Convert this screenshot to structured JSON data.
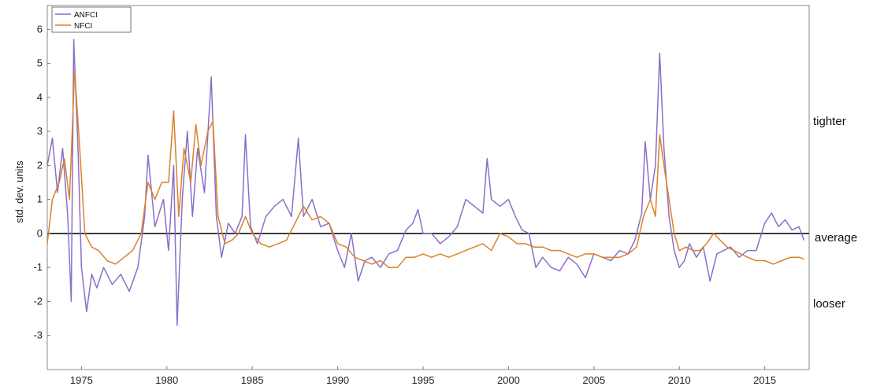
{
  "chart_data": {
    "type": "line",
    "title": "",
    "xlabel": "",
    "ylabel": "std. dev. units",
    "xlim": [
      1973,
      2017.6
    ],
    "ylim": [
      -4,
      6.7
    ],
    "x_ticks": [
      1975,
      1980,
      1985,
      1990,
      1995,
      2000,
      2005,
      2010,
      2015
    ],
    "y_ticks": [
      -3,
      -2,
      -1,
      0,
      1,
      2,
      3,
      4,
      5,
      6
    ],
    "grid": false,
    "legend": "top-left",
    "reference_line": 0,
    "side_labels": {
      "tighter": "tighter",
      "average": "average",
      "looser": "looser"
    },
    "series": [
      {
        "name": "ANFCI",
        "color": "#8a6fc8",
        "points": [
          [
            1973.0,
            2.0
          ],
          [
            1973.3,
            2.8
          ],
          [
            1973.6,
            1.2
          ],
          [
            1973.9,
            2.5
          ],
          [
            1974.2,
            0.5
          ],
          [
            1974.4,
            -2.0
          ],
          [
            1974.55,
            5.7
          ],
          [
            1974.8,
            2.5
          ],
          [
            1975.0,
            -1.0
          ],
          [
            1975.3,
            -2.3
          ],
          [
            1975.6,
            -1.2
          ],
          [
            1975.9,
            -1.6
          ],
          [
            1976.3,
            -1.0
          ],
          [
            1976.8,
            -1.5
          ],
          [
            1977.3,
            -1.2
          ],
          [
            1977.8,
            -1.7
          ],
          [
            1978.3,
            -1.0
          ],
          [
            1978.7,
            0.5
          ],
          [
            1978.9,
            2.3
          ],
          [
            1979.3,
            0.2
          ],
          [
            1979.8,
            1.0
          ],
          [
            1980.1,
            -0.5
          ],
          [
            1980.4,
            2.0
          ],
          [
            1980.6,
            -2.7
          ],
          [
            1980.9,
            1.0
          ],
          [
            1981.2,
            3.0
          ],
          [
            1981.5,
            0.5
          ],
          [
            1981.8,
            2.5
          ],
          [
            1982.2,
            1.2
          ],
          [
            1982.6,
            4.6
          ],
          [
            1982.9,
            0.5
          ],
          [
            1983.2,
            -0.7
          ],
          [
            1983.6,
            0.3
          ],
          [
            1984.0,
            0.0
          ],
          [
            1984.4,
            0.5
          ],
          [
            1984.6,
            2.9
          ],
          [
            1984.9,
            0.2
          ],
          [
            1985.3,
            -0.3
          ],
          [
            1985.8,
            0.5
          ],
          [
            1986.3,
            0.8
          ],
          [
            1986.8,
            1.0
          ],
          [
            1987.3,
            0.5
          ],
          [
            1987.7,
            2.8
          ],
          [
            1988.0,
            0.5
          ],
          [
            1988.5,
            1.0
          ],
          [
            1989.0,
            0.2
          ],
          [
            1989.5,
            0.3
          ],
          [
            1990.0,
            -0.5
          ],
          [
            1990.4,
            -1.0
          ],
          [
            1990.8,
            0.0
          ],
          [
            1991.2,
            -1.4
          ],
          [
            1991.6,
            -0.8
          ],
          [
            1992.0,
            -0.7
          ],
          [
            1992.5,
            -1.0
          ],
          [
            1993.0,
            -0.6
          ],
          [
            1993.5,
            -0.5
          ],
          [
            1994.0,
            0.1
          ],
          [
            1994.4,
            0.3
          ],
          [
            1994.7,
            0.7
          ],
          [
            1995.0,
            0.0
          ],
          [
            1995.5,
            0.0
          ],
          [
            1996.0,
            -0.3
          ],
          [
            1996.5,
            -0.1
          ],
          [
            1997.0,
            0.2
          ],
          [
            1997.5,
            1.0
          ],
          [
            1998.0,
            0.8
          ],
          [
            1998.5,
            0.6
          ],
          [
            1998.75,
            2.2
          ],
          [
            1999.0,
            1.0
          ],
          [
            1999.5,
            0.8
          ],
          [
            2000.0,
            1.0
          ],
          [
            2000.4,
            0.5
          ],
          [
            2000.8,
            0.1
          ],
          [
            2001.2,
            0.0
          ],
          [
            2001.6,
            -1.0
          ],
          [
            2002.0,
            -0.7
          ],
          [
            2002.5,
            -1.0
          ],
          [
            2003.0,
            -1.1
          ],
          [
            2003.5,
            -0.7
          ],
          [
            2004.0,
            -0.9
          ],
          [
            2004.5,
            -1.3
          ],
          [
            2005.0,
            -0.6
          ],
          [
            2005.5,
            -0.7
          ],
          [
            2006.0,
            -0.8
          ],
          [
            2006.5,
            -0.5
          ],
          [
            2007.0,
            -0.6
          ],
          [
            2007.4,
            -0.2
          ],
          [
            2007.8,
            0.6
          ],
          [
            2008.0,
            2.7
          ],
          [
            2008.3,
            1.0
          ],
          [
            2008.6,
            2.0
          ],
          [
            2008.85,
            5.3
          ],
          [
            2009.1,
            2.5
          ],
          [
            2009.4,
            0.5
          ],
          [
            2009.7,
            -0.5
          ],
          [
            2010.0,
            -1.0
          ],
          [
            2010.3,
            -0.8
          ],
          [
            2010.6,
            -0.3
          ],
          [
            2011.0,
            -0.7
          ],
          [
            2011.4,
            -0.4
          ],
          [
            2011.8,
            -1.4
          ],
          [
            2012.2,
            -0.6
          ],
          [
            2012.6,
            -0.5
          ],
          [
            2013.0,
            -0.4
          ],
          [
            2013.5,
            -0.7
          ],
          [
            2014.0,
            -0.5
          ],
          [
            2014.5,
            -0.5
          ],
          [
            2015.0,
            0.3
          ],
          [
            2015.4,
            0.6
          ],
          [
            2015.8,
            0.2
          ],
          [
            2016.2,
            0.4
          ],
          [
            2016.6,
            0.1
          ],
          [
            2017.0,
            0.2
          ],
          [
            2017.3,
            -0.2
          ]
        ]
      },
      {
        "name": "NFCI",
        "color": "#d9822b",
        "points": [
          [
            1973.0,
            -0.3
          ],
          [
            1973.3,
            1.0
          ],
          [
            1973.7,
            1.5
          ],
          [
            1974.0,
            2.2
          ],
          [
            1974.3,
            1.0
          ],
          [
            1974.6,
            4.8
          ],
          [
            1974.9,
            2.5
          ],
          [
            1975.2,
            0.0
          ],
          [
            1975.6,
            -0.4
          ],
          [
            1976.0,
            -0.5
          ],
          [
            1976.5,
            -0.8
          ],
          [
            1977.0,
            -0.9
          ],
          [
            1977.5,
            -0.7
          ],
          [
            1978.0,
            -0.5
          ],
          [
            1978.5,
            0.0
          ],
          [
            1978.9,
            1.5
          ],
          [
            1979.3,
            1.0
          ],
          [
            1979.7,
            1.5
          ],
          [
            1980.1,
            1.5
          ],
          [
            1980.4,
            3.6
          ],
          [
            1980.7,
            0.5
          ],
          [
            1981.0,
            2.5
          ],
          [
            1981.4,
            1.5
          ],
          [
            1981.7,
            3.2
          ],
          [
            1982.0,
            2.0
          ],
          [
            1982.4,
            3.0
          ],
          [
            1982.7,
            3.3
          ],
          [
            1983.0,
            0.5
          ],
          [
            1983.4,
            -0.3
          ],
          [
            1983.8,
            -0.2
          ],
          [
            1984.2,
            0.0
          ],
          [
            1984.6,
            0.5
          ],
          [
            1985.0,
            0.0
          ],
          [
            1985.5,
            -0.3
          ],
          [
            1986.0,
            -0.4
          ],
          [
            1986.5,
            -0.3
          ],
          [
            1987.0,
            -0.2
          ],
          [
            1987.5,
            0.3
          ],
          [
            1988.0,
            0.8
          ],
          [
            1988.5,
            0.4
          ],
          [
            1989.0,
            0.5
          ],
          [
            1989.5,
            0.3
          ],
          [
            1990.0,
            -0.3
          ],
          [
            1990.5,
            -0.4
          ],
          [
            1991.0,
            -0.7
          ],
          [
            1991.5,
            -0.8
          ],
          [
            1992.0,
            -0.9
          ],
          [
            1992.5,
            -0.8
          ],
          [
            1993.0,
            -1.0
          ],
          [
            1993.5,
            -1.0
          ],
          [
            1994.0,
            -0.7
          ],
          [
            1994.5,
            -0.7
          ],
          [
            1995.0,
            -0.6
          ],
          [
            1995.5,
            -0.7
          ],
          [
            1996.0,
            -0.6
          ],
          [
            1996.5,
            -0.7
          ],
          [
            1997.0,
            -0.6
          ],
          [
            1997.5,
            -0.5
          ],
          [
            1998.0,
            -0.4
          ],
          [
            1998.5,
            -0.3
          ],
          [
            1999.0,
            -0.5
          ],
          [
            1999.5,
            0.0
          ],
          [
            2000.0,
            -0.1
          ],
          [
            2000.5,
            -0.3
          ],
          [
            2001.0,
            -0.3
          ],
          [
            2001.5,
            -0.4
          ],
          [
            2002.0,
            -0.4
          ],
          [
            2002.5,
            -0.5
          ],
          [
            2003.0,
            -0.5
          ],
          [
            2003.5,
            -0.6
          ],
          [
            2004.0,
            -0.7
          ],
          [
            2004.5,
            -0.6
          ],
          [
            2005.0,
            -0.6
          ],
          [
            2005.5,
            -0.7
          ],
          [
            2006.0,
            -0.7
          ],
          [
            2006.5,
            -0.7
          ],
          [
            2007.0,
            -0.6
          ],
          [
            2007.5,
            -0.4
          ],
          [
            2007.9,
            0.5
          ],
          [
            2008.3,
            1.0
          ],
          [
            2008.6,
            0.5
          ],
          [
            2008.85,
            2.9
          ],
          [
            2009.1,
            2.0
          ],
          [
            2009.4,
            1.0
          ],
          [
            2009.7,
            0.0
          ],
          [
            2010.0,
            -0.5
          ],
          [
            2010.4,
            -0.4
          ],
          [
            2010.8,
            -0.5
          ],
          [
            2011.2,
            -0.5
          ],
          [
            2011.6,
            -0.3
          ],
          [
            2012.0,
            0.0
          ],
          [
            2012.4,
            -0.2
          ],
          [
            2012.8,
            -0.4
          ],
          [
            2013.2,
            -0.5
          ],
          [
            2013.6,
            -0.6
          ],
          [
            2014.0,
            -0.7
          ],
          [
            2014.5,
            -0.8
          ],
          [
            2015.0,
            -0.8
          ],
          [
            2015.5,
            -0.9
          ],
          [
            2016.0,
            -0.8
          ],
          [
            2016.5,
            -0.7
          ],
          [
            2017.0,
            -0.7
          ],
          [
            2017.3,
            -0.75
          ]
        ]
      }
    ]
  }
}
